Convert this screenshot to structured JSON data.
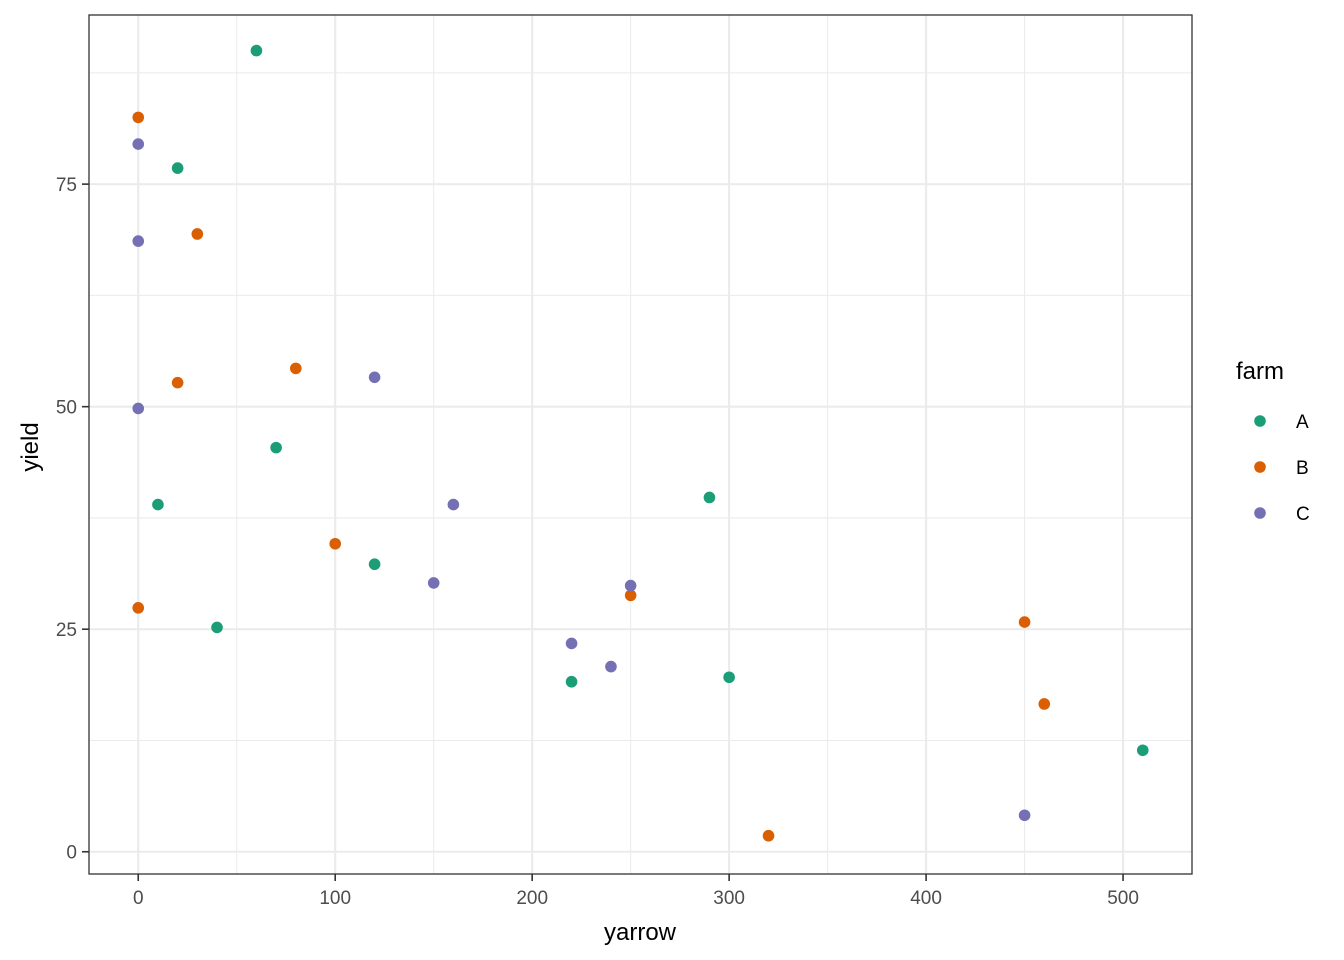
{
  "chart_data": {
    "type": "scatter",
    "xlabel": "yarrow",
    "ylabel": "yield",
    "xlim": [
      -25,
      535
    ],
    "ylim": [
      -2.5,
      94
    ],
    "x_ticks": [
      0,
      100,
      200,
      300,
      400,
      500
    ],
    "y_ticks": [
      0,
      25,
      50,
      75
    ],
    "x_ticks_labels": [
      "0",
      "100",
      "200",
      "300",
      "400",
      "500"
    ],
    "y_ticks_labels": [
      "0",
      "25",
      "50",
      "75"
    ],
    "grid": true,
    "legend": {
      "title": "farm",
      "placement": "right",
      "entries": [
        "A",
        "B",
        "C"
      ]
    },
    "colors": {
      "A": "#1b9e77",
      "B": "#d95f02",
      "C": "#7570b3"
    },
    "series": [
      {
        "name": "A",
        "points": [
          {
            "x": 60,
            "y": 90.0
          },
          {
            "x": 20,
            "y": 76.8
          },
          {
            "x": 70,
            "y": 45.4
          },
          {
            "x": 10,
            "y": 39.0
          },
          {
            "x": 120,
            "y": 32.3
          },
          {
            "x": 40,
            "y": 25.2
          },
          {
            "x": 290,
            "y": 39.8
          },
          {
            "x": 300,
            "y": 19.6
          },
          {
            "x": 220,
            "y": 19.1
          },
          {
            "x": 510,
            "y": 11.4
          }
        ]
      },
      {
        "name": "B",
        "points": [
          {
            "x": 0,
            "y": 82.5
          },
          {
            "x": 30,
            "y": 69.4
          },
          {
            "x": 80,
            "y": 54.3
          },
          {
            "x": 20,
            "y": 52.7
          },
          {
            "x": 100,
            "y": 34.6
          },
          {
            "x": 0,
            "y": 27.4
          },
          {
            "x": 250,
            "y": 28.8
          },
          {
            "x": 450,
            "y": 25.8
          },
          {
            "x": 460,
            "y": 16.6
          },
          {
            "x": 320,
            "y": 1.8
          }
        ]
      },
      {
        "name": "C",
        "points": [
          {
            "x": 0,
            "y": 79.5
          },
          {
            "x": 0,
            "y": 68.6
          },
          {
            "x": 0,
            "y": 49.8
          },
          {
            "x": 120,
            "y": 53.3
          },
          {
            "x": 160,
            "y": 39.0
          },
          {
            "x": 150,
            "y": 30.2
          },
          {
            "x": 250,
            "y": 29.9
          },
          {
            "x": 220,
            "y": 23.4
          },
          {
            "x": 240,
            "y": 20.8
          },
          {
            "x": 450,
            "y": 4.1
          }
        ]
      }
    ]
  }
}
